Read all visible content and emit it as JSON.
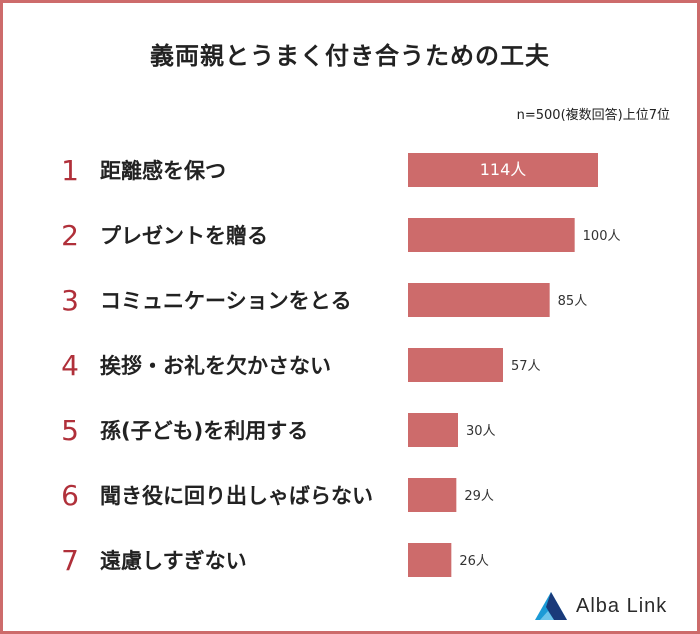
{
  "title": "義両親とうまく付き合うための工夫",
  "note": "n=500(複数回答)上位7位",
  "chart_data": {
    "type": "bar",
    "orientation": "horizontal",
    "ranks": [
      "1",
      "2",
      "3",
      "4",
      "5",
      "6",
      "7"
    ],
    "categories": [
      "距離感を保つ",
      "プレゼントを贈る",
      "コミュニケーションをとる",
      "挨拶・お礼を欠かさない",
      "孫(子ども)を利用する",
      "聞き役に回り出しゃばらない",
      "遠慮しすぎない"
    ],
    "values": [
      114,
      100,
      85,
      57,
      30,
      29,
      26
    ],
    "unit": "人",
    "xlim": [
      0,
      114
    ],
    "grid": false,
    "bar_color": "#cd6b6b",
    "rank_color": "#b0303a"
  },
  "logo": {
    "text": "Alba Link",
    "colors": [
      "#1b9ad6",
      "#1a3a7a"
    ]
  }
}
